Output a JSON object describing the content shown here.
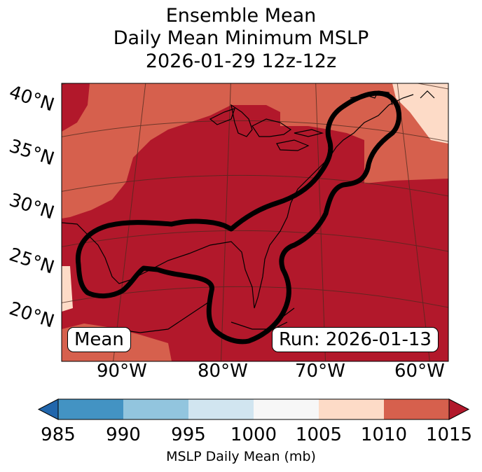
{
  "title": {
    "line1": "Ensemble Mean",
    "line2": "Daily Mean Minimum MSLP",
    "line3": "2026-01-29 12z-12z"
  },
  "map": {
    "lat_labels": [
      "40°N",
      "35°N",
      "30°N",
      "25°N",
      "20°N"
    ],
    "lon_labels": [
      "90°W",
      "80°W",
      "70°W",
      "60°W"
    ],
    "left_box": "Mean",
    "right_box": "Run: 2026-01-13",
    "contour_color": "#000000"
  },
  "colorbar": {
    "label": "MSLP Daily Mean (mb)",
    "ticks": [
      "985",
      "990",
      "995",
      "1000",
      "1005",
      "1010",
      "1015"
    ],
    "bins": [
      {
        "range": "<985",
        "color": "#2166ac"
      },
      {
        "range": "985-990",
        "color": "#4393c3"
      },
      {
        "range": "990-995",
        "color": "#92c5de"
      },
      {
        "range": "995-1000",
        "color": "#d1e5f0"
      },
      {
        "range": "1000-1005",
        "color": "#f7f7f7"
      },
      {
        "range": "1005-1010",
        "color": "#fddbc7"
      },
      {
        "range": "1010-1015",
        "color": "#d6604d"
      },
      {
        "range": ">1015",
        "color": "#b2182b"
      }
    ]
  }
}
